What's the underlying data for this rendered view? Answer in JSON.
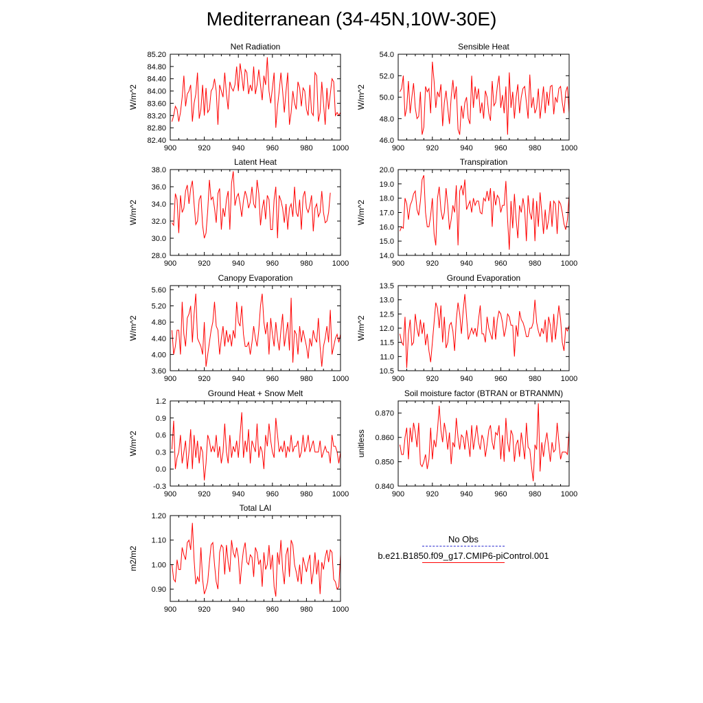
{
  "title": "Mediterranean (34-45N,10W-30E)",
  "legend": {
    "obs_label": "No Obs",
    "case_label": "b.e21.B1850.f09_g17.CMIP6-piControl.001",
    "obs_color": "#2b2bd0",
    "case_color": "#ff0000"
  },
  "line_color": "#ff0000",
  "chart_data": [
    {
      "type": "line",
      "title": "Net Radiation",
      "ylabel": "W/m^2",
      "x_start": 901,
      "x_ticks": [
        900,
        920,
        940,
        960,
        980,
        1000
      ],
      "y_ticks": [
        "82.40",
        "82.80",
        "83.20",
        "83.60",
        "84.00",
        "84.40",
        "84.80",
        "85.20"
      ],
      "ylim": [
        82.4,
        85.2
      ],
      "xlim": [
        900,
        1000
      ],
      "values": [
        83.0,
        83.2,
        83.5,
        83.4,
        83.0,
        83.3,
        83.8,
        84.5,
        83.5,
        83.9,
        84.0,
        84.2,
        83.0,
        83.6,
        83.9,
        84.6,
        83.1,
        83.4,
        84.2,
        83.2,
        84.1,
        83.3,
        83.4,
        84.0,
        84.1,
        84.4,
        84.0,
        82.9,
        84.2,
        84.0,
        83.8,
        84.6,
        83.9,
        83.4,
        84.3,
        84.1,
        84.0,
        84.2,
        84.8,
        84.0,
        84.9,
        84.5,
        84.0,
        84.7,
        84.6,
        83.9,
        84.2,
        84.0,
        84.8,
        83.9,
        84.2,
        84.7,
        84.2,
        83.7,
        84.5,
        84.2,
        85.1,
        84.0,
        83.6,
        84.1,
        84.6,
        82.8,
        83.5,
        84.0,
        84.6,
        84.0,
        83.3,
        84.0,
        84.6,
        82.9,
        83.3,
        84.0,
        83.6,
        83.4,
        84.3,
        84.1,
        83.5,
        84.1,
        84.0,
        83.4,
        83.2,
        84.2,
        83.3,
        83.2,
        84.6,
        84.5,
        83.0,
        83.3,
        84.3,
        83.6,
        82.9,
        84.1,
        83.4,
        83.9,
        84.4,
        84.3,
        83.2,
        83.3,
        83.2,
        83.3
      ]
    },
    {
      "type": "line",
      "title": "Sensible Heat",
      "ylabel": "W/m^2",
      "x_start": 901,
      "x_ticks": [
        900,
        920,
        940,
        960,
        980,
        1000
      ],
      "y_ticks": [
        "46.0",
        "48.0",
        "50.0",
        "52.0",
        "54.0"
      ],
      "ylim": [
        46.0,
        54.0
      ],
      "xlim": [
        900,
        1000
      ],
      "values": [
        50.5,
        50.8,
        52.0,
        48.2,
        49.0,
        51.5,
        48.5,
        50.0,
        51.3,
        49.0,
        48.0,
        48.2,
        50.5,
        46.5,
        47.2,
        51.0,
        50.5,
        50.8,
        48.5,
        53.3,
        51.5,
        49.0,
        50.5,
        50.0,
        51.2,
        47.3,
        49.5,
        50.6,
        49.0,
        47.5,
        50.0,
        51.6,
        49.8,
        51.0,
        47.0,
        46.5,
        49.2,
        48.0,
        49.5,
        50.0,
        48.0,
        47.5,
        52.0,
        49.0,
        51.0,
        49.8,
        50.8,
        48.5,
        49.5,
        48.0,
        50.6,
        50.0,
        48.5,
        47.8,
        51.5,
        49.2,
        49.5,
        51.0,
        52.0,
        49.0,
        50.2,
        48.5,
        51.0,
        46.5,
        52.3,
        49.0,
        50.5,
        48.0,
        50.0,
        51.2,
        48.5,
        50.0,
        50.8,
        51.0,
        49.5,
        48.0,
        52.1,
        49.0,
        50.0,
        48.5,
        49.0,
        50.8,
        48.0,
        49.5,
        51.0,
        48.5,
        50.5,
        49.2,
        51.0,
        51.1,
        48.4,
        50.0,
        49.5,
        50.8,
        51.0,
        49.5,
        48.5,
        50.5,
        51.0,
        48.5
      ]
    },
    {
      "type": "line",
      "title": "Latent Heat",
      "ylabel": "W/m^2",
      "x_start": 901,
      "x_ticks": [
        900,
        920,
        940,
        960,
        980,
        1000
      ],
      "y_ticks": [
        "28.0",
        "30.0",
        "32.0",
        "34.0",
        "36.0",
        "38.0"
      ],
      "ylim": [
        28.0,
        38.0
      ],
      "xlim": [
        900,
        1000
      ],
      "values": [
        31.8,
        31.5,
        35.2,
        34.5,
        30.6,
        35.0,
        33.0,
        33.5,
        35.5,
        36.2,
        34.0,
        35.8,
        36.7,
        34.0,
        31.6,
        32.0,
        34.5,
        35.0,
        31.5,
        30.0,
        30.6,
        33.2,
        36.8,
        34.5,
        34.8,
        33.5,
        31.8,
        35.2,
        35.8,
        31.0,
        33.5,
        32.5,
        34.5,
        35.5,
        31.0,
        36.4,
        37.8,
        33.8,
        34.8,
        35.2,
        34.0,
        32.5,
        34.4,
        35.5,
        34.8,
        33.5,
        34.2,
        36.0,
        34.0,
        33.5,
        36.8,
        35.2,
        31.5,
        33.4,
        34.5,
        32.2,
        35.0,
        34.5,
        31.0,
        31.0,
        34.5,
        36.0,
        30.0,
        35.0,
        34.4,
        33.5,
        31.8,
        34.0,
        31.0,
        33.5,
        34.0,
        32.5,
        36.0,
        33.0,
        32.5,
        34.5,
        31.0,
        34.8,
        35.5,
        33.5,
        33.0,
        33.8,
        35.0,
        30.8,
        33.5,
        34.0,
        32.5,
        33.0,
        35.5,
        33.0,
        31.8,
        32.0,
        33.0,
        35.3
      ]
    },
    {
      "type": "line",
      "title": "Transpiration",
      "ylabel": "W/m^2",
      "x_start": 901,
      "x_ticks": [
        900,
        920,
        940,
        960,
        980,
        1000
      ],
      "y_ticks": [
        "14.0",
        "15.0",
        "16.0",
        "17.0",
        "18.0",
        "19.0",
        "20.0"
      ],
      "ylim": [
        14.0,
        20.0
      ],
      "xlim": [
        900,
        1000
      ],
      "values": [
        15.7,
        16.0,
        15.9,
        18.0,
        17.6,
        16.5,
        17.5,
        17.8,
        18.3,
        18.5,
        17.2,
        16.8,
        17.8,
        19.3,
        19.6,
        17.0,
        16.0,
        16.0,
        16.8,
        18.0,
        15.5,
        14.7,
        18.0,
        18.8,
        17.2,
        16.5,
        17.0,
        18.7,
        17.5,
        15.8,
        16.5,
        17.5,
        17.0,
        18.9,
        14.7,
        18.5,
        18.9,
        18.2,
        19.3,
        17.2,
        17.5,
        17.8,
        17.0,
        18.0,
        17.5,
        17.8,
        17.8,
        17.0,
        16.9,
        18.0,
        17.8,
        18.5,
        17.8,
        18.7,
        16.0,
        18.5,
        17.5,
        18.2,
        18.0,
        17.0,
        17.5,
        17.5,
        19.2,
        16.5,
        14.4,
        17.8,
        15.9,
        18.3,
        16.5,
        15.2,
        17.5,
        17.0,
        18.0,
        17.2,
        15.0,
        18.2,
        17.0,
        16.5,
        18.0,
        15.0,
        17.8,
        16.0,
        18.4,
        17.0,
        15.5,
        17.2,
        15.8,
        16.5,
        17.8,
        16.0,
        17.8,
        17.6,
        15.5,
        17.8,
        17.6,
        17.0,
        16.2,
        15.8,
        16.5,
        18.2
      ]
    },
    {
      "type": "line",
      "title": "Canopy Evaporation",
      "ylabel": "W/m^2",
      "x_start": 901,
      "x_ticks": [
        900,
        920,
        940,
        960,
        980,
        1000
      ],
      "y_ticks": [
        "3.60",
        "4.00",
        "4.40",
        "4.80",
        "5.20",
        "5.60"
      ],
      "ylim": [
        3.6,
        5.7
      ],
      "xlim": [
        900,
        1000
      ],
      "values": [
        4.6,
        4.0,
        4.2,
        4.6,
        4.6,
        4.0,
        5.3,
        4.5,
        4.2,
        4.9,
        5.0,
        5.2,
        4.3,
        5.0,
        5.5,
        4.4,
        4.3,
        4.2,
        4.0,
        4.8,
        3.7,
        4.0,
        4.3,
        4.6,
        4.8,
        5.3,
        4.7,
        4.6,
        4.0,
        4.4,
        4.7,
        4.2,
        4.6,
        4.3,
        4.5,
        4.2,
        4.6,
        4.4,
        5.3,
        4.8,
        4.7,
        5.2,
        4.5,
        4.2,
        4.2,
        4.3,
        4.0,
        4.3,
        4.7,
        4.4,
        4.2,
        4.6,
        5.2,
        5.5,
        4.8,
        4.5,
        4.8,
        4.0,
        4.9,
        4.5,
        4.2,
        4.8,
        4.4,
        4.1,
        4.6,
        5.0,
        4.2,
        4.5,
        4.8,
        4.1,
        5.4,
        3.8,
        4.6,
        4.5,
        4.0,
        4.7,
        4.3,
        4.6,
        4.4,
        4.2,
        3.9,
        4.4,
        4.2,
        4.6,
        4.4,
        4.3,
        4.9,
        4.2,
        3.7,
        4.2,
        4.4,
        4.7,
        4.3,
        5.1,
        4.0,
        4.2,
        4.4,
        4.5,
        4.3,
        4.5
      ]
    },
    {
      "type": "line",
      "title": "Ground Evaporation",
      "ylabel": "W/m^2",
      "x_start": 901,
      "x_ticks": [
        900,
        920,
        940,
        960,
        980,
        1000
      ],
      "y_ticks": [
        "10.5",
        "11.0",
        "11.5",
        "12.0",
        "12.5",
        "13.0",
        "13.5"
      ],
      "ylim": [
        10.5,
        13.5
      ],
      "xlim": [
        900,
        1000
      ],
      "values": [
        11.8,
        11.5,
        11.4,
        12.4,
        10.6,
        11.8,
        12.3,
        11.4,
        11.5,
        12.5,
        12.0,
        11.7,
        12.3,
        11.8,
        12.2,
        11.4,
        11.8,
        11.2,
        10.8,
        11.5,
        12.2,
        12.9,
        12.7,
        12.0,
        12.8,
        11.5,
        12.4,
        11.3,
        11.5,
        12.1,
        12.2,
        11.9,
        11.2,
        12.3,
        12.9,
        12.5,
        11.8,
        12.6,
        13.2,
        12.4,
        11.6,
        11.8,
        12.0,
        11.8,
        12.0,
        11.7,
        12.3,
        12.8,
        11.8,
        11.8,
        11.5,
        12.4,
        12.0,
        11.8,
        11.6,
        12.4,
        11.6,
        12.3,
        12.6,
        12.5,
        12.2,
        11.7,
        12.0,
        12.5,
        12.4,
        12.1,
        12.1,
        11.0,
        12.1,
        11.7,
        12.6,
        12.3,
        12.2,
        12.0,
        11.7,
        11.7,
        12.0,
        12.0,
        12.2,
        13.0,
        12.2,
        11.9,
        11.7,
        12.0,
        11.8,
        12.3,
        11.5,
        12.4,
        12.1,
        11.5,
        12.5,
        11.6,
        12.2,
        12.8,
        12.3,
        11.5,
        11.2,
        12.0,
        11.9,
        12.1
      ]
    },
    {
      "type": "line",
      "title": "Ground Heat + Snow Melt",
      "ylabel": "W/m^2",
      "x_start": 901,
      "x_ticks": [
        900,
        920,
        940,
        960,
        980,
        1000
      ],
      "y_ticks": [
        "-0.3",
        "0.0",
        "0.3",
        "0.6",
        "0.9",
        "1.2"
      ],
      "ylim": [
        -0.3,
        1.2
      ],
      "xlim": [
        900,
        1000
      ],
      "values": [
        0.35,
        0.85,
        0.0,
        0.2,
        0.3,
        0.6,
        0.1,
        0.3,
        0.5,
        0.0,
        0.3,
        0.7,
        0.0,
        0.6,
        0.2,
        0.5,
        0.1,
        0.4,
        0.3,
        -0.2,
        0.1,
        0.6,
        0.5,
        0.3,
        0.4,
        0.3,
        0.6,
        0.2,
        0.4,
        0.1,
        0.3,
        0.8,
        0.3,
        0.1,
        0.6,
        0.2,
        0.4,
        0.3,
        0.5,
        0.2,
        0.6,
        1.0,
        0.2,
        0.5,
        0.3,
        0.7,
        0.1,
        0.5,
        0.4,
        0.3,
        0.8,
        0.2,
        0.4,
        0.3,
        0.0,
        0.6,
        0.4,
        0.8,
        0.5,
        0.3,
        0.2,
        0.9,
        0.6,
        0.3,
        0.4,
        0.3,
        0.5,
        0.2,
        0.4,
        0.3,
        0.6,
        0.3,
        0.4,
        0.4,
        0.5,
        0.2,
        0.3,
        0.6,
        0.3,
        0.4,
        0.6,
        0.3,
        0.4,
        0.5,
        0.3,
        0.3,
        0.3,
        0.5,
        0.2,
        0.3,
        0.4,
        0.3,
        0.3,
        0.1,
        0.6,
        0.4,
        0.4,
        0.3,
        0.1,
        0.3
      ]
    },
    {
      "type": "line",
      "title": "Soil moisture factor (BTRAN or BTRANMN)",
      "ylabel": "unitless",
      "x_start": 901,
      "x_ticks": [
        900,
        920,
        940,
        960,
        980,
        1000
      ],
      "y_ticks": [
        "0.840",
        "0.850",
        "0.860",
        "0.870"
      ],
      "ylim": [
        0.84,
        0.875
      ],
      "xlim": [
        900,
        1000
      ],
      "values": [
        0.857,
        0.853,
        0.853,
        0.86,
        0.864,
        0.851,
        0.864,
        0.858,
        0.866,
        0.862,
        0.856,
        0.866,
        0.849,
        0.848,
        0.85,
        0.853,
        0.847,
        0.851,
        0.864,
        0.851,
        0.859,
        0.856,
        0.863,
        0.873,
        0.863,
        0.858,
        0.866,
        0.862,
        0.855,
        0.862,
        0.849,
        0.858,
        0.856,
        0.868,
        0.86,
        0.855,
        0.861,
        0.86,
        0.855,
        0.863,
        0.858,
        0.852,
        0.865,
        0.855,
        0.86,
        0.865,
        0.858,
        0.855,
        0.861,
        0.859,
        0.852,
        0.857,
        0.863,
        0.865,
        0.858,
        0.855,
        0.862,
        0.861,
        0.865,
        0.851,
        0.861,
        0.85,
        0.868,
        0.858,
        0.854,
        0.863,
        0.861,
        0.85,
        0.857,
        0.859,
        0.852,
        0.862,
        0.857,
        0.851,
        0.866,
        0.856,
        0.855,
        0.848,
        0.842,
        0.857,
        0.855,
        0.874,
        0.846,
        0.858,
        0.852,
        0.858,
        0.862,
        0.856,
        0.85,
        0.858,
        0.854,
        0.855,
        0.866,
        0.858,
        0.851,
        0.854,
        0.854,
        0.854,
        0.853,
        0.863
      ]
    },
    {
      "type": "line",
      "title": "Total LAI",
      "ylabel": "m2/m2",
      "x_start": 901,
      "x_ticks": [
        900,
        920,
        940,
        960,
        980,
        1000
      ],
      "y_ticks": [
        "0.90",
        "1.00",
        "1.10",
        "1.20"
      ],
      "ylim": [
        0.85,
        1.2
      ],
      "xlim": [
        900,
        1000
      ],
      "values": [
        1.0,
        0.94,
        0.93,
        1.02,
        0.98,
        0.98,
        1.07,
        1.04,
        1.02,
        1.09,
        1.1,
        1.06,
        1.17,
        1.02,
        0.92,
        0.95,
        0.93,
        1.07,
        0.94,
        0.88,
        0.9,
        0.93,
        1.01,
        1.08,
        1.09,
        1.0,
        0.93,
        0.9,
        1.05,
        1.08,
        1.07,
        0.96,
        1.08,
        1.01,
        0.97,
        1.1,
        1.05,
        1.03,
        1.07,
        1.03,
        0.92,
        1.0,
        1.06,
        1.09,
        1.01,
        1.0,
        1.04,
        1.03,
        0.95,
        1.07,
        1.05,
        1.0,
        1.02,
        0.91,
        1.05,
        0.98,
        1.0,
        1.08,
        0.98,
        1.04,
        0.91,
        0.87,
        1.05,
        1.0,
        1.1,
        0.98,
        0.92,
        1.04,
        1.07,
        0.95,
        1.1,
        1.08,
        1.0,
        0.97,
        0.93,
        1.0,
        0.92,
        1.03,
        1.0,
        0.97,
        1.01,
        1.04,
        0.92,
        0.97,
        1.05,
        0.96,
        1.02,
        0.88,
        1.01,
        0.98,
        1.03,
        1.06,
        1.01,
        1.06,
        1.05,
        0.94,
        0.93,
        0.9,
        0.91,
        1.04
      ]
    }
  ]
}
